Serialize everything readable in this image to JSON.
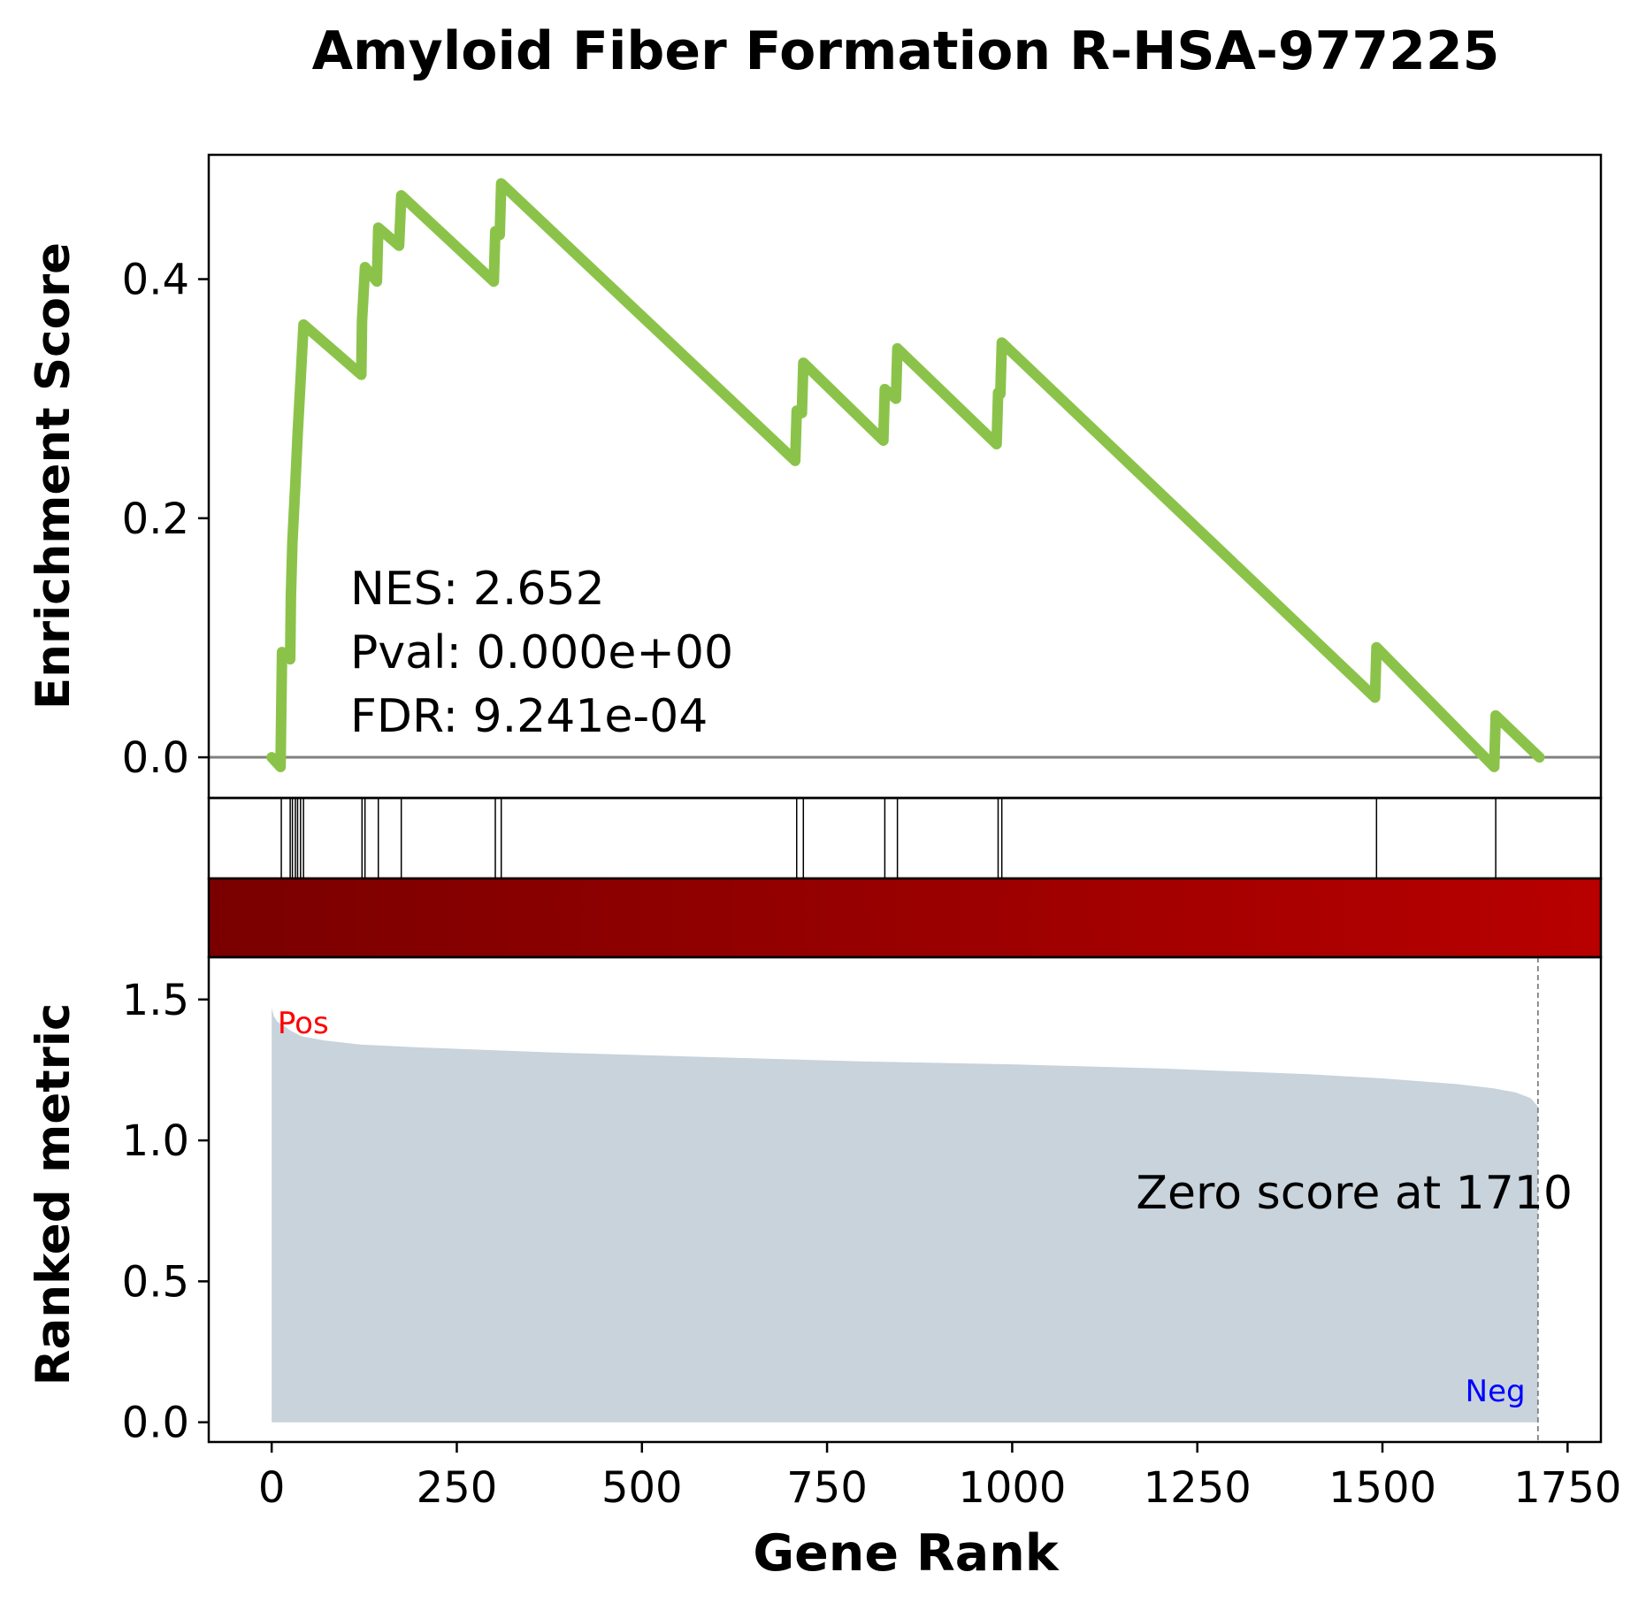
{
  "chart_data": {
    "type": "line",
    "title": "Amyloid Fiber Formation R-HSA-977225",
    "xlabel": "Gene Rank",
    "xlim": [
      -85,
      1795
    ],
    "x_ticks": [
      0,
      250,
      500,
      750,
      1000,
      1250,
      1500,
      1750
    ],
    "es_panel": {
      "ylabel": "Enrichment Score",
      "ylim": [
        -0.034,
        0.504
      ],
      "y_ticks": [
        "0.0",
        "0.2",
        "0.4"
      ],
      "y_tick_values": [
        0.0,
        0.2,
        0.4
      ],
      "line_color": "#8bc34a",
      "zero_line_color": "#808080",
      "running_es": [
        [
          0,
          0.0
        ],
        [
          12,
          -0.008
        ],
        [
          13,
          0.04
        ],
        [
          14,
          0.088
        ],
        [
          25,
          0.082
        ],
        [
          26,
          0.135
        ],
        [
          28,
          0.18
        ],
        [
          32,
          0.23
        ],
        [
          35,
          0.27
        ],
        [
          39,
          0.315
        ],
        [
          43,
          0.362
        ],
        [
          121,
          0.32
        ],
        [
          122,
          0.365
        ],
        [
          126,
          0.41
        ],
        [
          142,
          0.398
        ],
        [
          144,
          0.443
        ],
        [
          172,
          0.428
        ],
        [
          175,
          0.47
        ],
        [
          300,
          0.398
        ],
        [
          302,
          0.44
        ],
        [
          308,
          0.437
        ],
        [
          310,
          0.48
        ],
        [
          707,
          0.248
        ],
        [
          709,
          0.29
        ],
        [
          716,
          0.288
        ],
        [
          718,
          0.33
        ],
        [
          826,
          0.265
        ],
        [
          828,
          0.308
        ],
        [
          843,
          0.3
        ],
        [
          845,
          0.342
        ],
        [
          979,
          0.262
        ],
        [
          981,
          0.305
        ],
        [
          984,
          0.304
        ],
        [
          986,
          0.347
        ],
        [
          1490,
          0.05
        ],
        [
          1492,
          0.092
        ],
        [
          1651,
          -0.008
        ],
        [
          1653,
          0.035
        ],
        [
          1712,
          0.0
        ]
      ],
      "annotations": [
        "NES: 2.652",
        "Pval: 0.000e+00",
        "FDR: 9.241e-04"
      ]
    },
    "hits": [
      13,
      25,
      28,
      32,
      35,
      39,
      43,
      122,
      126,
      144,
      175,
      302,
      310,
      709,
      718,
      828,
      845,
      981,
      986,
      1492,
      1653
    ],
    "heatmap": {
      "colors": [
        "#7a0000",
        "#b80000"
      ]
    },
    "ranked_panel": {
      "ylabel": "Ranked metric",
      "ylim": [
        -0.07,
        1.65
      ],
      "y_ticks": [
        "0.0",
        "0.5",
        "1.0",
        "1.5"
      ],
      "y_tick_values": [
        0.0,
        0.5,
        1.0,
        1.5
      ],
      "fill_color": "#c8d3dc",
      "metric": [
        [
          0,
          1.47
        ],
        [
          3,
          1.44
        ],
        [
          8,
          1.42
        ],
        [
          15,
          1.41
        ],
        [
          25,
          1.39
        ],
        [
          40,
          1.37
        ],
        [
          70,
          1.355
        ],
        [
          120,
          1.34
        ],
        [
          200,
          1.33
        ],
        [
          400,
          1.31
        ],
        [
          600,
          1.295
        ],
        [
          800,
          1.28
        ],
        [
          1000,
          1.27
        ],
        [
          1200,
          1.255
        ],
        [
          1400,
          1.235
        ],
        [
          1500,
          1.22
        ],
        [
          1600,
          1.2
        ],
        [
          1650,
          1.185
        ],
        [
          1680,
          1.17
        ],
        [
          1700,
          1.15
        ],
        [
          1710,
          1.12
        ]
      ],
      "zero_cross": 1710,
      "zero_label": "Zero score at 1710",
      "pos_label": "Pos",
      "neg_label": "Neg",
      "pos_color": "#ff0000",
      "neg_color": "#0000ff"
    }
  }
}
